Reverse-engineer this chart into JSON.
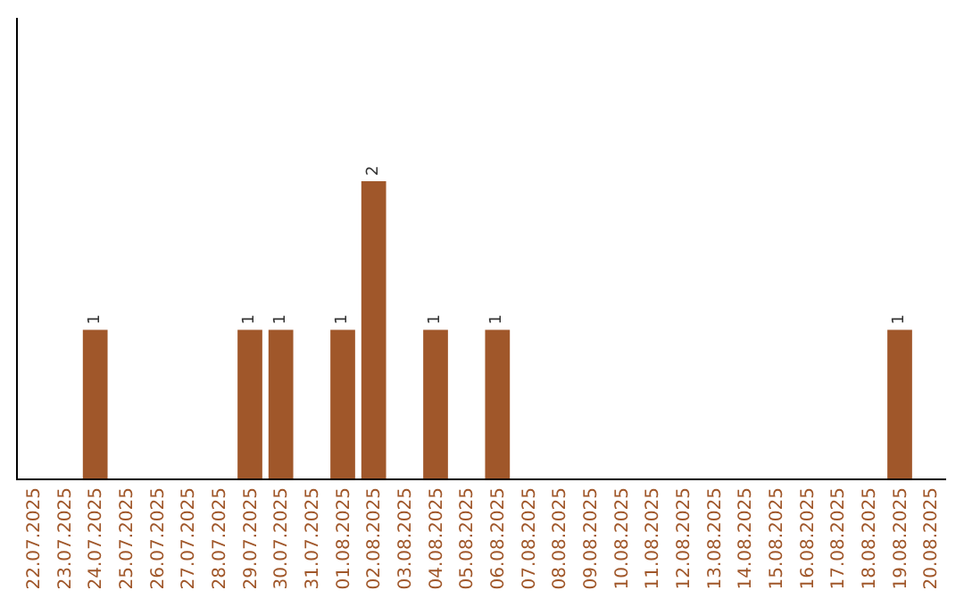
{
  "chart_data": {
    "type": "bar",
    "categories": [
      "22.07.2025",
      "23.07.2025",
      "24.07.2025",
      "25.07.2025",
      "26.07.2025",
      "27.07.2025",
      "28.07.2025",
      "29.07.2025",
      "30.07.2025",
      "31.07.2025",
      "01.08.2025",
      "02.08.2025",
      "03.08.2025",
      "04.08.2025",
      "05.08.2025",
      "06.08.2025",
      "07.08.2025",
      "08.08.2025",
      "09.08.2025",
      "10.08.2025",
      "11.08.2025",
      "12.08.2025",
      "13.08.2025",
      "14.08.2025",
      "15.08.2025",
      "16.08.2025",
      "17.08.2025",
      "18.08.2025",
      "19.08.2025",
      "20.08.2025"
    ],
    "values": [
      0,
      0,
      1,
      0,
      0,
      0,
      0,
      1,
      1,
      0,
      1,
      2,
      0,
      1,
      0,
      1,
      0,
      0,
      0,
      0,
      0,
      0,
      0,
      0,
      0,
      0,
      0,
      0,
      1,
      0
    ],
    "value_labels": [
      null,
      null,
      "1",
      null,
      null,
      null,
      null,
      "1",
      "1",
      null,
      "1",
      "2",
      null,
      "1",
      null,
      "1",
      null,
      null,
      null,
      null,
      null,
      null,
      null,
      null,
      null,
      null,
      null,
      null,
      "1",
      null
    ],
    "color": "#a0572a",
    "ylim": [
      0,
      3.1
    ],
    "tick_labels": "x"
  }
}
